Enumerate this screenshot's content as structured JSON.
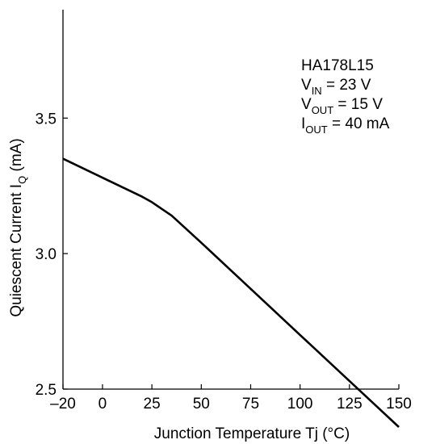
{
  "chart_data": {
    "type": "line",
    "xlabel": "Junction Temperature  Tj  (°C)",
    "ylabel": {
      "main": "Quiescent Current  I",
      "sub": "Q",
      "unit": "  (mA)"
    },
    "xlim": [
      -20,
      150
    ],
    "ylim": [
      2.5,
      3.9
    ],
    "x_ticks": [
      -20,
      0,
      25,
      50,
      75,
      100,
      125,
      150
    ],
    "x_tick_labels": [
      "–20",
      "0",
      "25",
      "50",
      "75",
      "100",
      "125",
      "150"
    ],
    "y_ticks": [
      2.5,
      3.0,
      3.5
    ],
    "y_tick_labels": [
      "2.5",
      "3.0",
      "3.5"
    ],
    "grid": false,
    "series": [
      {
        "x": [
          -20,
          0,
          20,
          25,
          30,
          35,
          50,
          75,
          100,
          125,
          150
        ],
        "y": [
          3.35,
          3.28,
          3.21,
          3.19,
          3.165,
          3.14,
          3.04,
          2.87,
          2.7,
          2.53,
          2.36
        ]
      }
    ],
    "annotation": [
      {
        "main": "HA178L15",
        "sub": "",
        "rest": ""
      },
      {
        "main": "V",
        "sub": "IN",
        "rest": " = 23 V"
      },
      {
        "main": "V",
        "sub": "OUT",
        "rest": " = 15 V"
      },
      {
        "main": "I",
        "sub": "OUT",
        "rest": " = 40 mA"
      }
    ]
  }
}
